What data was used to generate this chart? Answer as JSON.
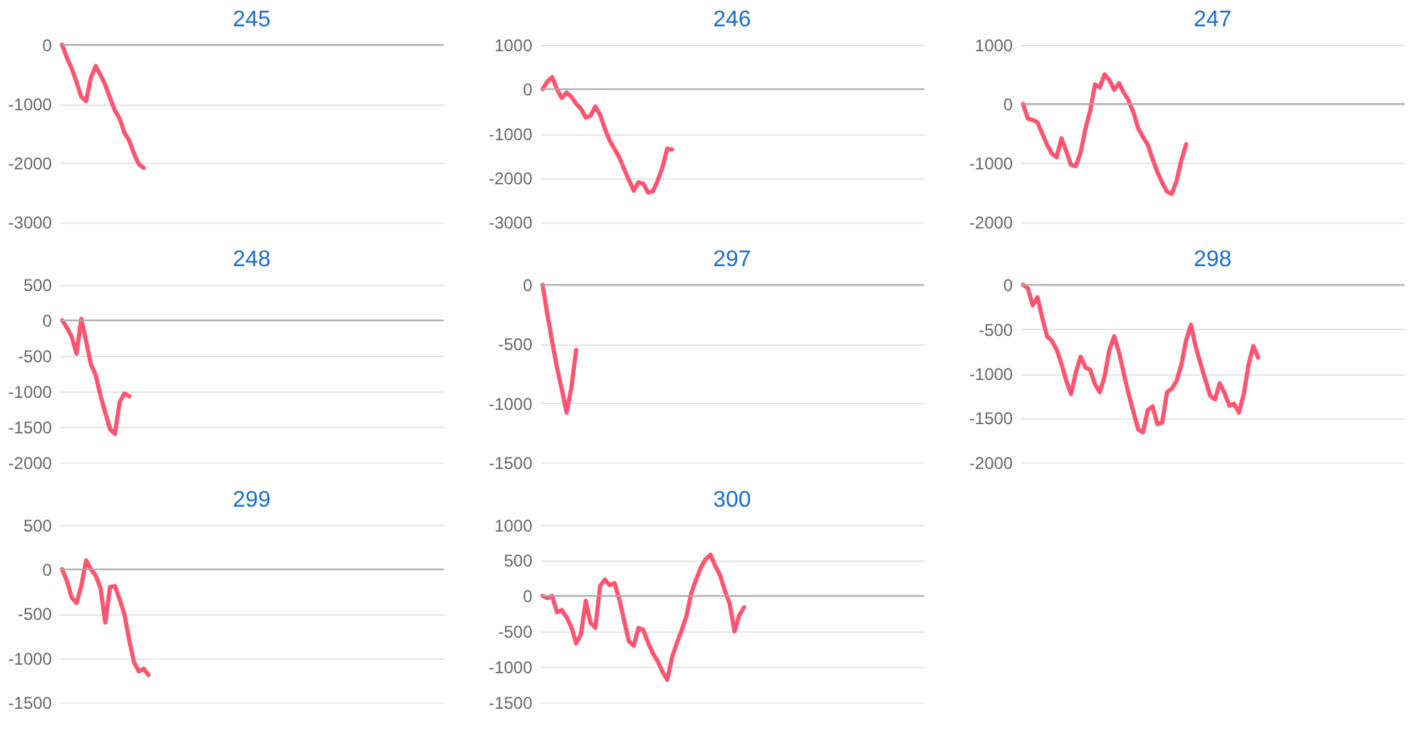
{
  "chart_data": [
    {
      "type": "line",
      "title": "245",
      "categories": [
        null,
        null,
        null,
        null,
        null,
        null,
        null,
        null,
        null,
        null,
        null,
        null,
        null,
        null,
        null,
        null,
        null,
        null,
        null,
        null,
        null,
        null,
        null,
        null,
        null,
        null,
        null,
        null,
        null,
        null,
        null,
        null,
        null,
        null,
        null,
        null,
        null,
        null,
        null,
        null,
        null,
        null,
        null,
        null,
        null,
        null,
        null,
        null,
        null,
        null,
        null,
        null,
        null,
        null,
        null,
        null,
        null,
        null,
        null,
        null,
        null,
        null,
        null,
        null,
        null,
        null,
        null,
        null,
        null,
        null,
        null,
        null,
        null,
        null,
        null,
        null,
        null,
        null,
        null,
        null
      ],
      "values": [
        0,
        -220,
        -400,
        -630,
        -880,
        -950,
        -560,
        -360,
        -510,
        -680,
        -900,
        -1110,
        -1250,
        -1490,
        -1620,
        -1840,
        -2020,
        -2080,
        null,
        null,
        null,
        null,
        null,
        null,
        null,
        null,
        null,
        null,
        null,
        null,
        null,
        null,
        null,
        null,
        null,
        null,
        null,
        null,
        null,
        null,
        null,
        null,
        null,
        null,
        null,
        null,
        null,
        null,
        null,
        null,
        null,
        null,
        null,
        null,
        null,
        null,
        null,
        null,
        null,
        null,
        null,
        null,
        null,
        null,
        null,
        null,
        null,
        null,
        null,
        null,
        null,
        null,
        null,
        null,
        null,
        null,
        null,
        null,
        null,
        null
      ],
      "color": "#ff5470",
      "ylim": [
        -3000,
        0
      ],
      "yticks": [
        -3000,
        -2000,
        -1000,
        0
      ],
      "grid": "y",
      "tick_labels": "y",
      "ref_lines": [
        {
          "axis": "y",
          "value": 0,
          "color": "#aaaaaa"
        }
      ]
    },
    {
      "type": "line",
      "title": "246",
      "categories": [
        null,
        null,
        null,
        null,
        null,
        null,
        null,
        null,
        null,
        null,
        null,
        null,
        null,
        null,
        null,
        null,
        null,
        null,
        null,
        null,
        null,
        null,
        null,
        null,
        null,
        null,
        null,
        null,
        null,
        null,
        null,
        null,
        null,
        null,
        null,
        null,
        null,
        null,
        null,
        null,
        null,
        null,
        null,
        null,
        null,
        null,
        null,
        null,
        null,
        null,
        null,
        null,
        null,
        null,
        null,
        null,
        null,
        null,
        null,
        null,
        null,
        null,
        null,
        null,
        null,
        null,
        null,
        null,
        null,
        null,
        null,
        null,
        null,
        null,
        null,
        null,
        null,
        null,
        null,
        null
      ],
      "values": [
        0,
        170,
        270,
        0,
        -200,
        -80,
        -170,
        -330,
        -440,
        -640,
        -600,
        -390,
        -580,
        -900,
        -1160,
        -1350,
        -1540,
        -1800,
        -2050,
        -2290,
        -2100,
        -2130,
        -2330,
        -2300,
        -2060,
        -1750,
        -1340,
        -1360,
        null,
        null,
        null,
        null,
        null,
        null,
        null,
        null,
        null,
        null,
        null,
        null,
        null,
        null,
        null,
        null,
        null,
        null,
        null,
        null,
        null,
        null,
        null,
        null,
        null,
        null,
        null,
        null,
        null,
        null,
        null,
        null,
        null,
        null,
        null,
        null,
        null,
        null,
        null,
        null,
        null,
        null,
        null,
        null,
        null,
        null,
        null,
        null,
        null,
        null,
        null,
        null
      ],
      "color": "#ff5470",
      "ylim": [
        -3000,
        1000
      ],
      "yticks": [
        -3000,
        -2000,
        -1000,
        0,
        1000
      ],
      "grid": "y",
      "tick_labels": "y",
      "ref_lines": [
        {
          "axis": "y",
          "value": 0,
          "color": "#aaaaaa"
        }
      ]
    },
    {
      "type": "line",
      "title": "247",
      "categories": [
        null,
        null,
        null,
        null,
        null,
        null,
        null,
        null,
        null,
        null,
        null,
        null,
        null,
        null,
        null,
        null,
        null,
        null,
        null,
        null,
        null,
        null,
        null,
        null,
        null,
        null,
        null,
        null,
        null,
        null,
        null,
        null,
        null,
        null,
        null,
        null,
        null,
        null,
        null,
        null,
        null,
        null,
        null,
        null,
        null,
        null,
        null,
        null,
        null,
        null,
        null,
        null,
        null,
        null,
        null,
        null,
        null,
        null,
        null,
        null,
        null,
        null,
        null,
        null,
        null,
        null,
        null,
        null,
        null,
        null,
        null,
        null,
        null,
        null,
        null,
        null,
        null,
        null,
        null,
        null
      ],
      "values": [
        0,
        -250,
        -270,
        -310,
        -500,
        -690,
        -840,
        -900,
        -580,
        -800,
        -1030,
        -1050,
        -820,
        -420,
        -110,
        330,
        280,
        500,
        400,
        240,
        350,
        190,
        60,
        -140,
        -410,
        -560,
        -690,
        -930,
        -1150,
        -1330,
        -1480,
        -1520,
        -1300,
        -950,
        -680,
        null,
        null,
        null,
        null,
        null,
        null,
        null,
        null,
        null,
        null,
        null,
        null,
        null,
        null,
        null,
        null,
        null,
        null,
        null,
        null,
        null,
        null,
        null,
        null,
        null,
        null,
        null,
        null,
        null,
        null,
        null,
        null,
        null,
        null,
        null,
        null,
        null,
        null,
        null,
        null,
        null,
        null,
        null,
        null,
        null
      ],
      "color": "#ff5470",
      "ylim": [
        -2000,
        1000
      ],
      "yticks": [
        -2000,
        -1000,
        0,
        1000
      ],
      "grid": "y",
      "tick_labels": "y",
      "ref_lines": [
        {
          "axis": "y",
          "value": 0,
          "color": "#aaaaaa"
        }
      ]
    },
    {
      "type": "line",
      "title": "248",
      "categories": [
        null,
        null,
        null,
        null,
        null,
        null,
        null,
        null,
        null,
        null,
        null,
        null,
        null,
        null,
        null,
        null,
        null,
        null,
        null,
        null,
        null,
        null,
        null,
        null,
        null,
        null,
        null,
        null,
        null,
        null,
        null,
        null,
        null,
        null,
        null,
        null,
        null,
        null,
        null,
        null,
        null,
        null,
        null,
        null,
        null,
        null,
        null,
        null,
        null,
        null,
        null,
        null,
        null,
        null,
        null,
        null,
        null,
        null,
        null,
        null,
        null,
        null,
        null,
        null,
        null,
        null,
        null,
        null,
        null,
        null,
        null,
        null,
        null,
        null,
        null,
        null,
        null,
        null,
        null,
        null
      ],
      "values": [
        0,
        -100,
        -230,
        -470,
        20,
        -290,
        -620,
        -770,
        -1060,
        -1300,
        -1530,
        -1600,
        -1150,
        -1030,
        -1070,
        null,
        null,
        null,
        null,
        null,
        null,
        null,
        null,
        null,
        null,
        null,
        null,
        null,
        null,
        null,
        null,
        null,
        null,
        null,
        null,
        null,
        null,
        null,
        null,
        null,
        null,
        null,
        null,
        null,
        null,
        null,
        null,
        null,
        null,
        null,
        null,
        null,
        null,
        null,
        null,
        null,
        null,
        null,
        null,
        null,
        null,
        null,
        null,
        null,
        null,
        null,
        null,
        null,
        null,
        null,
        null,
        null,
        null,
        null,
        null,
        null,
        null,
        null,
        null,
        null
      ],
      "color": "#ff5470",
      "ylim": [
        -2000,
        500
      ],
      "yticks": [
        -2000,
        -1500,
        -1000,
        -500,
        0,
        500
      ],
      "grid": "y",
      "tick_labels": "y",
      "ref_lines": [
        {
          "axis": "y",
          "value": 0,
          "color": "#aaaaaa"
        }
      ]
    },
    {
      "type": "line",
      "title": "297",
      "categories": [
        null,
        null,
        null,
        null,
        null,
        null,
        null,
        null,
        null,
        null,
        null,
        null,
        null,
        null,
        null,
        null,
        null,
        null,
        null,
        null,
        null,
        null,
        null,
        null,
        null,
        null,
        null,
        null,
        null,
        null,
        null,
        null,
        null,
        null,
        null,
        null,
        null,
        null,
        null,
        null,
        null,
        null,
        null,
        null,
        null,
        null,
        null,
        null,
        null,
        null,
        null,
        null,
        null,
        null,
        null,
        null,
        null,
        null,
        null,
        null,
        null,
        null,
        null,
        null,
        null,
        null,
        null,
        null,
        null,
        null,
        null,
        null,
        null,
        null,
        null,
        null,
        null,
        null,
        null,
        null
      ],
      "values": [
        0,
        -250,
        -480,
        -700,
        -880,
        -1080,
        -870,
        -550,
        null,
        null,
        null,
        null,
        null,
        null,
        null,
        null,
        null,
        null,
        null,
        null,
        null,
        null,
        null,
        null,
        null,
        null,
        null,
        null,
        null,
        null,
        null,
        null,
        null,
        null,
        null,
        null,
        null,
        null,
        null,
        null,
        null,
        null,
        null,
        null,
        null,
        null,
        null,
        null,
        null,
        null,
        null,
        null,
        null,
        null,
        null,
        null,
        null,
        null,
        null,
        null,
        null,
        null,
        null,
        null,
        null,
        null,
        null,
        null,
        null,
        null,
        null,
        null,
        null,
        null,
        null,
        null,
        null,
        null,
        null,
        null
      ],
      "color": "#ff5470",
      "ylim": [
        -1500,
        0
      ],
      "yticks": [
        -1500,
        -1000,
        -500,
        0
      ],
      "grid": "y",
      "tick_labels": "y",
      "ref_lines": [
        {
          "axis": "y",
          "value": 0,
          "color": "#aaaaaa"
        }
      ]
    },
    {
      "type": "line",
      "title": "298",
      "categories": [
        null,
        null,
        null,
        null,
        null,
        null,
        null,
        null,
        null,
        null,
        null,
        null,
        null,
        null,
        null,
        null,
        null,
        null,
        null,
        null,
        null,
        null,
        null,
        null,
        null,
        null,
        null,
        null,
        null,
        null,
        null,
        null,
        null,
        null,
        null,
        null,
        null,
        null,
        null,
        null,
        null,
        null,
        null,
        null,
        null,
        null,
        null,
        null,
        null,
        null,
        null,
        null,
        null,
        null,
        null,
        null,
        null,
        null,
        null,
        null,
        null,
        null,
        null,
        null,
        null,
        null,
        null,
        null,
        null,
        null,
        null,
        null,
        null,
        null,
        null,
        null,
        null,
        null,
        null,
        null
      ],
      "values": [
        0,
        -40,
        -230,
        -140,
        -370,
        -580,
        -630,
        -730,
        -890,
        -1080,
        -1230,
        -990,
        -810,
        -930,
        -960,
        -1120,
        -1210,
        -1030,
        -730,
        -580,
        -760,
        -1000,
        -1230,
        -1430,
        -1630,
        -1660,
        -1410,
        -1370,
        -1570,
        -1550,
        -1210,
        -1170,
        -1080,
        -900,
        -620,
        -450,
        -700,
        -890,
        -1070,
        -1250,
        -1290,
        -1110,
        -1220,
        -1360,
        -1340,
        -1440,
        -1230,
        -900,
        -690,
        -820,
        null,
        null,
        null,
        null,
        null,
        null,
        null,
        null,
        null,
        null,
        null,
        null,
        null,
        null,
        null,
        null,
        null,
        null,
        null,
        null,
        null,
        null,
        null,
        null,
        null,
        null,
        null,
        null,
        null,
        null
      ],
      "color": "#ff5470",
      "ylim": [
        -2000,
        0
      ],
      "yticks": [
        -2000,
        -1500,
        -1000,
        -500,
        0
      ],
      "grid": "y",
      "tick_labels": "y",
      "ref_lines": [
        {
          "axis": "y",
          "value": 0,
          "color": "#aaaaaa"
        }
      ]
    },
    {
      "type": "line",
      "title": "299",
      "categories": [
        null,
        null,
        null,
        null,
        null,
        null,
        null,
        null,
        null,
        null,
        null,
        null,
        null,
        null,
        null,
        null,
        null,
        null,
        null,
        null,
        null,
        null,
        null,
        null,
        null,
        null,
        null,
        null,
        null,
        null,
        null,
        null,
        null,
        null,
        null,
        null,
        null,
        null,
        null,
        null,
        null,
        null,
        null,
        null,
        null,
        null,
        null,
        null,
        null,
        null,
        null,
        null,
        null,
        null,
        null,
        null,
        null,
        null,
        null,
        null,
        null,
        null,
        null,
        null,
        null,
        null,
        null,
        null,
        null,
        null,
        null,
        null,
        null,
        null,
        null,
        null,
        null,
        null,
        null,
        null
      ],
      "values": [
        0,
        -130,
        -320,
        -380,
        -190,
        100,
        0,
        -70,
        -210,
        -600,
        -200,
        -190,
        -340,
        -510,
        -800,
        -1050,
        -1150,
        -1120,
        -1190,
        null,
        null,
        null,
        null,
        null,
        null,
        null,
        null,
        null,
        null,
        null,
        null,
        null,
        null,
        null,
        null,
        null,
        null,
        null,
        null,
        null,
        null,
        null,
        null,
        null,
        null,
        null,
        null,
        null,
        null,
        null,
        null,
        null,
        null,
        null,
        null,
        null,
        null,
        null,
        null,
        null,
        null,
        null,
        null,
        null,
        null,
        null,
        null,
        null,
        null,
        null,
        null,
        null,
        null,
        null,
        null,
        null,
        null,
        null,
        null,
        null
      ],
      "color": "#ff5470",
      "ylim": [
        -1500,
        500
      ],
      "yticks": [
        -1500,
        -1000,
        -500,
        0,
        500
      ],
      "grid": "y",
      "tick_labels": "y",
      "ref_lines": [
        {
          "axis": "y",
          "value": 0,
          "color": "#aaaaaa"
        }
      ]
    },
    {
      "type": "line",
      "title": "300",
      "categories": [
        null,
        null,
        null,
        null,
        null,
        null,
        null,
        null,
        null,
        null,
        null,
        null,
        null,
        null,
        null,
        null,
        null,
        null,
        null,
        null,
        null,
        null,
        null,
        null,
        null,
        null,
        null,
        null,
        null,
        null,
        null,
        null,
        null,
        null,
        null,
        null,
        null,
        null,
        null,
        null,
        null,
        null,
        null,
        null,
        null,
        null,
        null,
        null,
        null,
        null,
        null,
        null,
        null,
        null,
        null,
        null,
        null,
        null,
        null,
        null,
        null,
        null,
        null,
        null,
        null,
        null,
        null,
        null,
        null,
        null,
        null,
        null,
        null,
        null,
        null,
        null,
        null,
        null,
        null,
        null
      ],
      "values": [
        0,
        -30,
        0,
        -230,
        -200,
        -300,
        -440,
        -670,
        -540,
        -70,
        -380,
        -450,
        140,
        230,
        150,
        180,
        -50,
        -350,
        -640,
        -700,
        -450,
        -480,
        -660,
        -810,
        -920,
        -1070,
        -1180,
        -860,
        -660,
        -480,
        -280,
        40,
        230,
        400,
        520,
        580,
        420,
        290,
        70,
        -110,
        -500,
        -270,
        -160,
        null,
        null,
        null,
        null,
        null,
        null,
        null,
        null,
        null,
        null,
        null,
        null,
        null,
        null,
        null,
        null,
        null,
        null,
        null,
        null,
        null,
        null,
        null,
        null,
        null,
        null,
        null,
        null,
        null,
        null,
        null,
        null,
        null,
        null,
        null,
        null,
        null
      ],
      "color": "#ff5470",
      "ylim": [
        -1500,
        1000
      ],
      "yticks": [
        -1500,
        -1000,
        -500,
        0,
        500,
        1000
      ],
      "grid": "y",
      "tick_labels": "y",
      "ref_lines": [
        {
          "axis": "y",
          "value": 0,
          "color": "#aaaaaa"
        }
      ]
    }
  ]
}
